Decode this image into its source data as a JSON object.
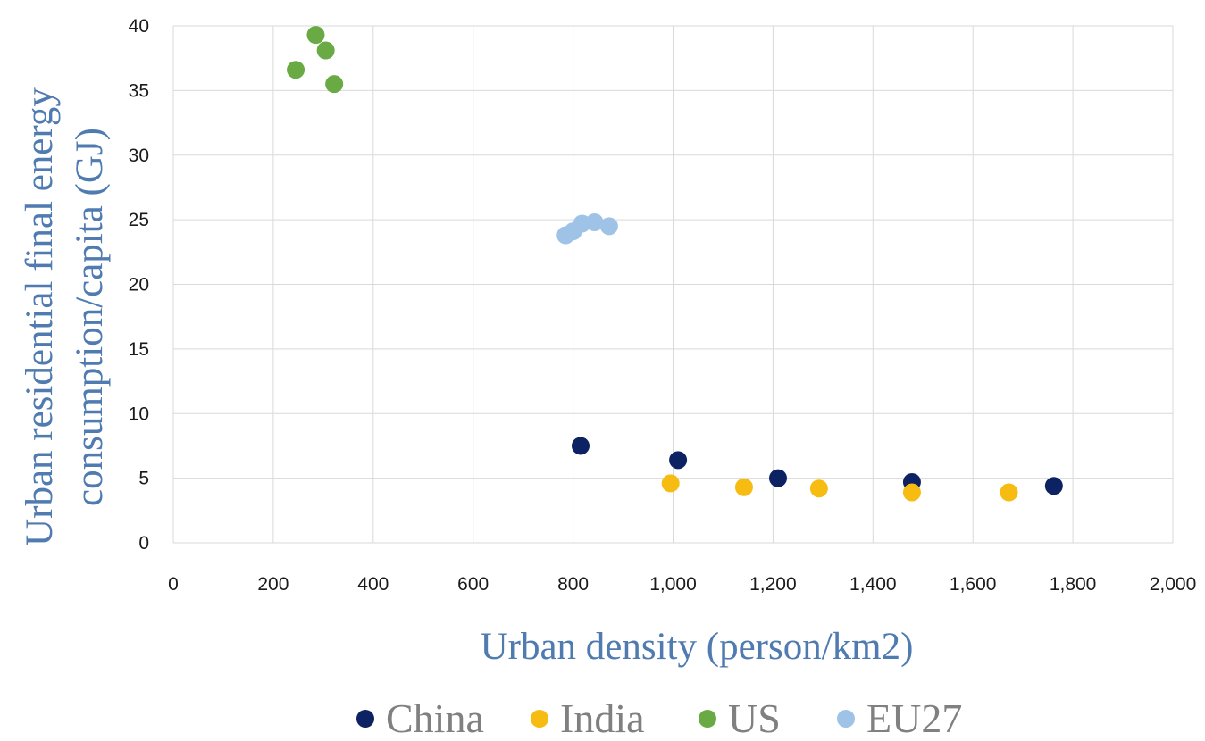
{
  "chart_data": {
    "type": "scatter",
    "title": "",
    "xlabel": "Urban density (person/km2)",
    "ylabel": "Urban residential final energy consumption/capita (GJ)",
    "ylabel_lines": [
      "Urban residential final energy",
      "consumption/capita (GJ)"
    ],
    "xlim": [
      0,
      2000
    ],
    "ylim": [
      0,
      40
    ],
    "x_ticks": [
      "0",
      "200",
      "400",
      "600",
      "800",
      "1,000",
      "1,200",
      "1,400",
      "1,600",
      "1,800",
      "2,000"
    ],
    "y_ticks": [
      "0",
      "5",
      "10",
      "15",
      "20",
      "25",
      "30",
      "35",
      "40"
    ],
    "grid": true,
    "legend_position": "bottom",
    "series": [
      {
        "name": "China",
        "color": "#0d2262",
        "points": [
          {
            "x": 815,
            "y": 7.5
          },
          {
            "x": 1010,
            "y": 6.4
          },
          {
            "x": 1210,
            "y": 5.0
          },
          {
            "x": 1478,
            "y": 4.7
          },
          {
            "x": 1762,
            "y": 4.4
          }
        ]
      },
      {
        "name": "India",
        "color": "#f7bc12",
        "points": [
          {
            "x": 995,
            "y": 4.6
          },
          {
            "x": 1142,
            "y": 4.3
          },
          {
            "x": 1292,
            "y": 4.2
          },
          {
            "x": 1478,
            "y": 3.9
          },
          {
            "x": 1672,
            "y": 3.9
          }
        ]
      },
      {
        "name": "US",
        "color": "#6aaa45",
        "points": [
          {
            "x": 245,
            "y": 36.6
          },
          {
            "x": 285,
            "y": 39.3
          },
          {
            "x": 305,
            "y": 38.1
          },
          {
            "x": 322,
            "y": 35.5
          }
        ]
      },
      {
        "name": "EU27",
        "color": "#9fc3e7",
        "points": [
          {
            "x": 785,
            "y": 23.8
          },
          {
            "x": 800,
            "y": 24.1
          },
          {
            "x": 818,
            "y": 24.7
          },
          {
            "x": 843,
            "y": 24.8
          },
          {
            "x": 872,
            "y": 24.5
          }
        ]
      }
    ]
  }
}
